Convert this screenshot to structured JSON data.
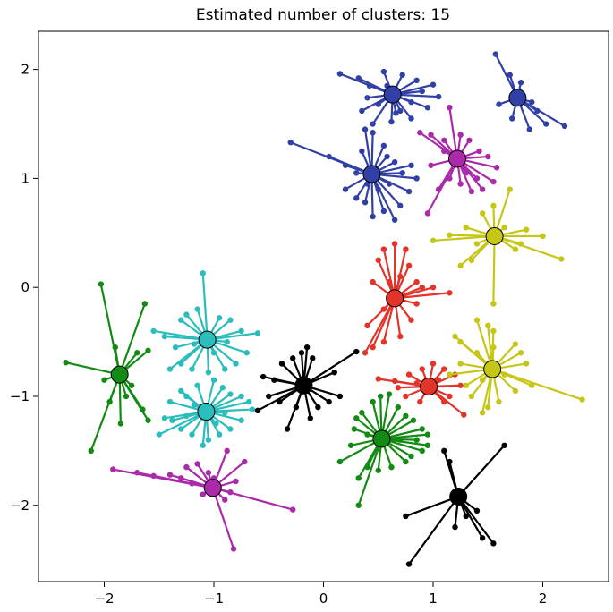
{
  "chart_data": {
    "type": "scatter",
    "title": "Estimated number of clusters:  15",
    "xlabel": "",
    "ylabel": "",
    "xlim": [
      -2.6,
      2.6
    ],
    "ylim": [
      -2.7,
      2.35
    ],
    "xticks": [
      -2,
      -1,
      0,
      1,
      2
    ],
    "xtick_labels": [
      "−2",
      "−1",
      "0",
      "1",
      "2"
    ],
    "yticks": [
      2,
      1,
      0,
      -1,
      -2
    ],
    "ytick_labels": [
      "2",
      "1",
      "0",
      "−1",
      "−2"
    ],
    "grid": false,
    "legend": "none",
    "clusters": [
      {
        "color": "#3140a6",
        "center": [
          0.63,
          1.77
        ],
        "points": [
          [
            0.15,
            1.96
          ],
          [
            0.32,
            1.92
          ],
          [
            0.42,
            1.85
          ],
          [
            0.55,
            1.98
          ],
          [
            0.72,
            1.95
          ],
          [
            0.85,
            1.9
          ],
          [
            1.0,
            1.86
          ],
          [
            1.05,
            1.75
          ],
          [
            0.95,
            1.65
          ],
          [
            0.8,
            1.55
          ],
          [
            0.62,
            1.52
          ],
          [
            0.45,
            1.5
          ],
          [
            0.35,
            1.62
          ],
          [
            0.5,
            1.68
          ],
          [
            0.7,
            1.62
          ],
          [
            0.8,
            1.7
          ],
          [
            0.58,
            1.85
          ],
          [
            0.9,
            1.8
          ],
          [
            0.4,
            1.74
          ],
          [
            0.66,
            1.6
          ]
        ]
      },
      {
        "color": "#3140a6",
        "center": [
          1.77,
          1.74
        ],
        "points": [
          [
            1.57,
            2.14
          ],
          [
            1.7,
            1.95
          ],
          [
            1.8,
            1.88
          ],
          [
            1.95,
            1.62
          ],
          [
            2.03,
            1.5
          ],
          [
            2.2,
            1.48
          ],
          [
            1.88,
            1.45
          ],
          [
            1.72,
            1.55
          ],
          [
            1.6,
            1.68
          ],
          [
            1.9,
            1.7
          ]
        ]
      },
      {
        "color": "#3140a6",
        "center": [
          0.44,
          1.04
        ],
        "points": [
          [
            -0.3,
            1.33
          ],
          [
            0.05,
            1.2
          ],
          [
            0.2,
            1.12
          ],
          [
            0.3,
            1.05
          ],
          [
            0.38,
            1.45
          ],
          [
            0.45,
            1.42
          ],
          [
            0.55,
            1.3
          ],
          [
            0.65,
            1.15
          ],
          [
            0.8,
            1.12
          ],
          [
            0.85,
            1.0
          ],
          [
            0.78,
            0.88
          ],
          [
            0.7,
            0.75
          ],
          [
            0.65,
            0.62
          ],
          [
            0.55,
            0.7
          ],
          [
            0.45,
            0.65
          ],
          [
            0.38,
            0.78
          ],
          [
            0.3,
            0.82
          ],
          [
            0.2,
            0.9
          ],
          [
            0.5,
            0.9
          ],
          [
            0.6,
            0.95
          ],
          [
            0.72,
            1.05
          ],
          [
            0.35,
            1.25
          ],
          [
            0.58,
            1.2
          ],
          [
            0.4,
            0.95
          ]
        ]
      },
      {
        "color": "#aa2aaa",
        "center": [
          1.22,
          1.18
        ],
        "points": [
          [
            0.88,
            1.42
          ],
          [
            0.98,
            1.4
          ],
          [
            1.1,
            1.35
          ],
          [
            1.15,
            1.65
          ],
          [
            1.25,
            1.4
          ],
          [
            1.33,
            1.35
          ],
          [
            1.42,
            1.25
          ],
          [
            1.5,
            1.2
          ],
          [
            1.58,
            1.1
          ],
          [
            1.55,
            0.97
          ],
          [
            1.45,
            0.9
          ],
          [
            1.35,
            0.88
          ],
          [
            1.25,
            0.95
          ],
          [
            1.15,
            1.0
          ],
          [
            1.05,
            0.9
          ],
          [
            0.95,
            0.68
          ],
          [
            0.98,
            1.12
          ],
          [
            1.1,
            1.25
          ],
          [
            1.3,
            1.05
          ],
          [
            1.4,
            1.0
          ]
        ]
      },
      {
        "color": "#c6c617",
        "center": [
          1.56,
          0.47
        ],
        "points": [
          [
            1.0,
            0.43
          ],
          [
            1.15,
            0.48
          ],
          [
            1.3,
            0.55
          ],
          [
            1.45,
            0.68
          ],
          [
            1.55,
            0.75
          ],
          [
            1.7,
            0.9
          ],
          [
            1.85,
            0.53
          ],
          [
            2.0,
            0.47
          ],
          [
            2.17,
            0.26
          ],
          [
            1.75,
            0.35
          ],
          [
            1.55,
            -0.15
          ],
          [
            1.35,
            0.25
          ],
          [
            1.25,
            0.2
          ],
          [
            1.4,
            0.4
          ],
          [
            1.65,
            0.55
          ],
          [
            1.8,
            0.4
          ]
        ]
      },
      {
        "color": "#e3342a",
        "center": [
          0.65,
          -0.1
        ],
        "points": [
          [
            0.5,
            0.25
          ],
          [
            0.55,
            0.35
          ],
          [
            0.65,
            0.4
          ],
          [
            0.75,
            0.35
          ],
          [
            0.78,
            0.2
          ],
          [
            0.85,
            0.05
          ],
          [
            0.9,
            0.0
          ],
          [
            1.0,
            0.0
          ],
          [
            1.15,
            -0.05
          ],
          [
            0.8,
            -0.3
          ],
          [
            0.7,
            -0.45
          ],
          [
            0.55,
            -0.5
          ],
          [
            0.45,
            -0.55
          ],
          [
            0.38,
            -0.6
          ],
          [
            0.4,
            -0.35
          ],
          [
            0.55,
            -0.2
          ],
          [
            0.6,
            0.05
          ],
          [
            0.7,
            0.1
          ],
          [
            0.45,
            0.05
          ],
          [
            0.85,
            -0.15
          ]
        ]
      },
      {
        "color": "#e3342a",
        "center": [
          0.96,
          -0.91
        ],
        "points": [
          [
            0.5,
            -0.84
          ],
          [
            0.65,
            -0.86
          ],
          [
            0.78,
            -0.8
          ],
          [
            0.9,
            -0.75
          ],
          [
            1.0,
            -0.7
          ],
          [
            1.1,
            -0.75
          ],
          [
            1.2,
            -0.8
          ],
          [
            1.25,
            -0.9
          ],
          [
            1.15,
            -1.0
          ],
          [
            1.1,
            -1.05
          ],
          [
            1.28,
            -1.17
          ],
          [
            0.88,
            -1.05
          ],
          [
            0.75,
            -1.0
          ],
          [
            0.68,
            -0.92
          ],
          [
            1.05,
            -0.85
          ],
          [
            0.85,
            -0.88
          ]
        ]
      },
      {
        "color": "#c6c617",
        "center": [
          1.54,
          -0.75
        ],
        "points": [
          [
            1.2,
            -0.45
          ],
          [
            1.25,
            -0.5
          ],
          [
            1.4,
            -0.3
          ],
          [
            1.5,
            -0.35
          ],
          [
            1.55,
            -0.4
          ],
          [
            1.75,
            -0.52
          ],
          [
            1.8,
            -0.6
          ],
          [
            1.85,
            -0.7
          ],
          [
            2.36,
            -1.03
          ],
          [
            1.9,
            -0.9
          ],
          [
            1.75,
            -0.95
          ],
          [
            1.6,
            -1.05
          ],
          [
            1.5,
            -1.1
          ],
          [
            1.45,
            -1.15
          ],
          [
            1.35,
            -1.0
          ],
          [
            1.3,
            -0.9
          ],
          [
            1.15,
            -0.8
          ],
          [
            1.25,
            -0.7
          ],
          [
            1.4,
            -0.6
          ],
          [
            1.65,
            -0.8
          ],
          [
            1.55,
            -0.55
          ],
          [
            1.45,
            -0.85
          ]
        ]
      },
      {
        "color": "#138a13",
        "center": [
          -1.86,
          -0.8
        ],
        "points": [
          [
            -2.03,
            0.03
          ],
          [
            -1.9,
            -0.55
          ],
          [
            -1.7,
            -0.6
          ],
          [
            -1.6,
            -0.58
          ],
          [
            -1.63,
            -0.15
          ],
          [
            -1.85,
            -1.25
          ],
          [
            -1.95,
            -1.05
          ],
          [
            -2.12,
            -1.5
          ],
          [
            -2.35,
            -0.69
          ],
          [
            -1.8,
            -1.0
          ],
          [
            -1.65,
            -1.12
          ],
          [
            -1.6,
            -1.22
          ],
          [
            -1.75,
            -0.9
          ],
          [
            -2.0,
            -0.85
          ]
        ]
      },
      {
        "color": "#2bbcbc",
        "center": [
          -1.06,
          -0.48
        ],
        "points": [
          [
            -1.1,
            0.13
          ],
          [
            -1.55,
            -0.4
          ],
          [
            -1.45,
            -0.45
          ],
          [
            -1.3,
            -0.3
          ],
          [
            -1.25,
            -0.25
          ],
          [
            -1.15,
            -0.2
          ],
          [
            -0.95,
            -0.28
          ],
          [
            -0.85,
            -0.3
          ],
          [
            -0.75,
            -0.4
          ],
          [
            -0.6,
            -0.42
          ],
          [
            -0.7,
            -0.6
          ],
          [
            -0.8,
            -0.7
          ],
          [
            -0.9,
            -0.75
          ],
          [
            -1.05,
            -0.78
          ],
          [
            -1.2,
            -0.75
          ],
          [
            -1.3,
            -0.7
          ],
          [
            -1.35,
            -0.55
          ],
          [
            -1.4,
            -0.75
          ],
          [
            -1.0,
            -0.6
          ],
          [
            -1.18,
            -0.52
          ],
          [
            -0.88,
            -0.5
          ]
        ]
      },
      {
        "color": "#2bbcbc",
        "center": [
          -1.07,
          -1.14
        ],
        "points": [
          [
            -1.5,
            -1.35
          ],
          [
            -1.45,
            -1.2
          ],
          [
            -1.4,
            -1.05
          ],
          [
            -1.3,
            -0.95
          ],
          [
            -1.25,
            -1.0
          ],
          [
            -1.15,
            -0.9
          ],
          [
            -1.0,
            -0.85
          ],
          [
            -0.92,
            -0.92
          ],
          [
            -0.85,
            -0.98
          ],
          [
            -0.75,
            -1.0
          ],
          [
            -0.68,
            -1.05
          ],
          [
            -0.65,
            -1.12
          ],
          [
            -0.75,
            -1.22
          ],
          [
            -0.85,
            -1.3
          ],
          [
            -0.95,
            -1.35
          ],
          [
            -1.05,
            -1.4
          ],
          [
            -1.1,
            -1.45
          ],
          [
            -1.2,
            -1.35
          ],
          [
            -1.3,
            -1.3
          ],
          [
            -1.38,
            -1.22
          ],
          [
            -0.9,
            -1.15
          ],
          [
            -1.18,
            -1.08
          ],
          [
            -0.98,
            -1.25
          ],
          [
            -1.25,
            -1.18
          ]
        ]
      },
      {
        "color": "#000000",
        "center": [
          -0.18,
          -0.9
        ],
        "points": [
          [
            -0.55,
            -0.82
          ],
          [
            -0.45,
            -0.85
          ],
          [
            -0.38,
            -0.7
          ],
          [
            -0.28,
            -0.65
          ],
          [
            -0.2,
            -0.6
          ],
          [
            -0.15,
            -0.55
          ],
          [
            -0.1,
            -0.65
          ],
          [
            0.1,
            -0.78
          ],
          [
            0.3,
            -0.59
          ],
          [
            0.15,
            -1.0
          ],
          [
            0.05,
            -1.05
          ],
          [
            -0.05,
            -1.1
          ],
          [
            -0.12,
            -1.2
          ],
          [
            -0.25,
            -1.1
          ],
          [
            -0.33,
            -1.3
          ],
          [
            -0.4,
            -1.05
          ],
          [
            -0.5,
            -1.0
          ],
          [
            -0.6,
            -1.13
          ]
        ]
      },
      {
        "color": "#138a13",
        "center": [
          0.53,
          -1.39
        ],
        "points": [
          [
            0.15,
            -1.6
          ],
          [
            0.25,
            -1.45
          ],
          [
            0.28,
            -1.3
          ],
          [
            0.3,
            -1.2
          ],
          [
            0.35,
            -1.15
          ],
          [
            0.45,
            -1.05
          ],
          [
            0.52,
            -1.0
          ],
          [
            0.6,
            -0.98
          ],
          [
            0.68,
            -1.1
          ],
          [
            0.75,
            -1.18
          ],
          [
            0.82,
            -1.22
          ],
          [
            0.9,
            -1.3
          ],
          [
            0.95,
            -1.35
          ],
          [
            0.95,
            -1.45
          ],
          [
            0.9,
            -1.5
          ],
          [
            0.8,
            -1.55
          ],
          [
            0.75,
            -1.6
          ],
          [
            0.62,
            -1.65
          ],
          [
            0.5,
            -1.68
          ],
          [
            0.4,
            -1.65
          ],
          [
            0.32,
            -1.75
          ],
          [
            0.32,
            -2.0
          ],
          [
            0.7,
            -1.4
          ],
          [
            0.4,
            -1.35
          ],
          [
            0.85,
            -1.4
          ]
        ]
      },
      {
        "color": "#aa2aaa",
        "center": [
          -1.01,
          -1.84
        ],
        "points": [
          [
            -1.92,
            -1.67
          ],
          [
            -1.7,
            -1.7
          ],
          [
            -1.55,
            -1.73
          ],
          [
            -1.4,
            -1.72
          ],
          [
            -1.3,
            -1.75
          ],
          [
            -1.25,
            -1.65
          ],
          [
            -1.15,
            -1.62
          ],
          [
            -1.05,
            -1.7
          ],
          [
            -0.88,
            -1.5
          ],
          [
            -0.72,
            -1.6
          ],
          [
            -0.8,
            -1.78
          ],
          [
            -0.85,
            -1.88
          ],
          [
            -0.9,
            -1.95
          ],
          [
            -1.1,
            -1.9
          ],
          [
            -1.2,
            -1.8
          ],
          [
            -0.82,
            -2.4
          ],
          [
            -0.28,
            -2.04
          ],
          [
            -1.0,
            -1.75
          ]
        ]
      },
      {
        "color": "#000000",
        "center": [
          1.23,
          -1.92
        ],
        "points": [
          [
            0.75,
            -2.1
          ],
          [
            0.78,
            -2.54
          ],
          [
            1.1,
            -1.5
          ],
          [
            1.15,
            -1.6
          ],
          [
            1.4,
            -2.05
          ],
          [
            1.45,
            -2.3
          ],
          [
            1.55,
            -2.35
          ],
          [
            1.65,
            -1.45
          ],
          [
            1.2,
            -2.2
          ],
          [
            1.3,
            -2.1
          ]
        ]
      }
    ]
  }
}
